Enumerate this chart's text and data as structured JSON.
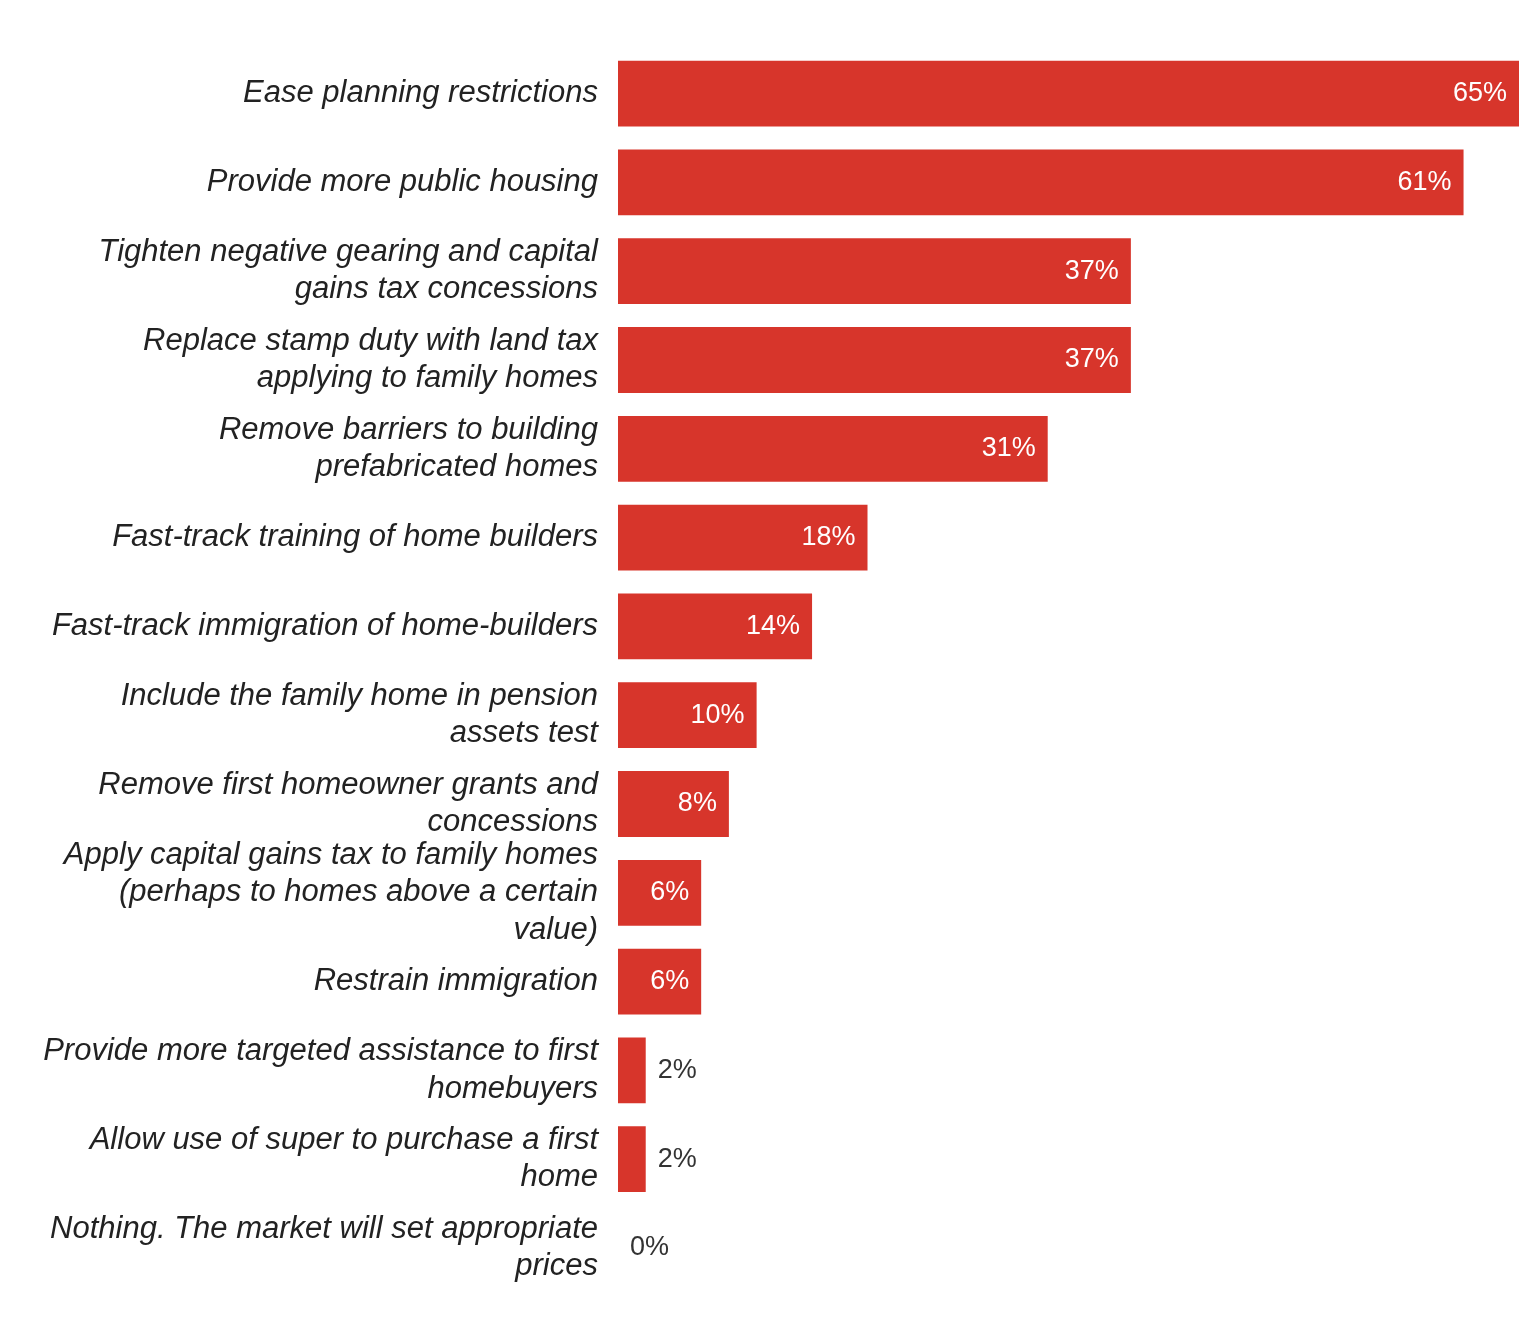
{
  "chart_data": {
    "type": "bar",
    "orientation": "horizontal",
    "categories": [
      "Ease planning restrictions",
      "Provide more public housing",
      "Tighten negative gearing and capital gains tax concessions",
      "Replace stamp duty with land tax applying to family homes",
      "Remove barriers to building prefabricated homes",
      "Fast-track training of home builders",
      "Fast-track immigration of home-builders",
      "Include the family home in pension assets test",
      "Remove first homeowner grants and concessions",
      "Apply capital gains tax to family homes (perhaps to homes above a certain value)",
      "Restrain immigration",
      "Provide more targeted assistance to first homebuyers",
      "Allow use of super to purchase a first home",
      "Nothing. The market will set appropriate prices"
    ],
    "values": [
      65,
      61,
      37,
      37,
      31,
      18,
      14,
      10,
      8,
      6,
      6,
      2,
      2,
      0
    ],
    "value_labels": [
      "65%",
      "61%",
      "37%",
      "37%",
      "31%",
      "18%",
      "14%",
      "10%",
      "8%",
      "6%",
      "6%",
      "2%",
      "2%",
      "0%"
    ],
    "color": "#d7352b"
  }
}
